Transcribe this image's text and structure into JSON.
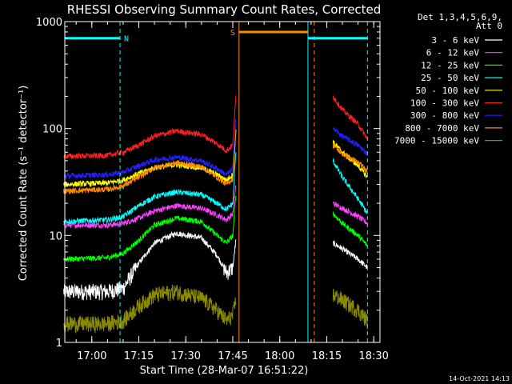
{
  "chart_data": {
    "type": "line",
    "title": "RHESSI Observing Summary Count Rates, Corrected",
    "ylabel": "Corrected Count Rate (s⁻¹ detector⁻¹)",
    "xlabel": "Start Time (28-Mar-07 16:51:22)",
    "y_scale": "log",
    "ylim": [
      1,
      1000
    ],
    "y_ticks": [
      {
        "value": 1,
        "label": "1"
      },
      {
        "value": 10,
        "label": "10"
      },
      {
        "value": 100,
        "label": "100"
      },
      {
        "value": 1000,
        "label": "1000"
      }
    ],
    "xlim": [
      "16:51:22",
      "18:32"
    ],
    "x_ticks": [
      "17:00",
      "17:15",
      "17:30",
      "17:45",
      "18:00",
      "18:15",
      "18:30"
    ],
    "grid": false,
    "legend_position": "right",
    "legend_header": [
      "Det 1,3,4,5,6,9,",
      "Att 0"
    ],
    "series": [
      {
        "name": "3 - 6 keV",
        "color": "#ffffff",
        "points": [
          [
            "16:51",
            3.0
          ],
          [
            "17:05",
            3.0
          ],
          [
            "17:10",
            3.2
          ],
          [
            "17:15",
            5.5
          ],
          [
            "17:20",
            8.5
          ],
          [
            "17:27",
            10.5
          ],
          [
            "17:35",
            9.5
          ],
          [
            "17:40",
            6.5
          ],
          [
            "17:43",
            4.5
          ],
          [
            "17:45",
            5.0
          ],
          [
            "17:46",
            9.0
          ]
        ],
        "points_late": [
          [
            "18:17",
            8.5
          ],
          [
            "18:20",
            7.5
          ],
          [
            "18:25",
            6.0
          ],
          [
            "18:28",
            5.0
          ]
        ]
      },
      {
        "name": "6 - 12 keV",
        "color": "#ff40ff",
        "points": [
          [
            "16:51",
            12.5
          ],
          [
            "17:05",
            12.5
          ],
          [
            "17:10",
            13.0
          ],
          [
            "17:15",
            14.5
          ],
          [
            "17:20",
            17.0
          ],
          [
            "17:27",
            19.0
          ],
          [
            "17:35",
            18.0
          ],
          [
            "17:40",
            15.5
          ],
          [
            "17:43",
            14.0
          ],
          [
            "17:45",
            16.0
          ],
          [
            "17:46",
            30.0
          ]
        ],
        "points_late": [
          [
            "18:17",
            20.0
          ],
          [
            "18:20",
            18.0
          ],
          [
            "18:25",
            15.0
          ],
          [
            "18:28",
            13.0
          ]
        ]
      },
      {
        "name": "12 - 25 keV",
        "color": "#00ff00",
        "points": [
          [
            "16:51",
            6.0
          ],
          [
            "17:05",
            6.2
          ],
          [
            "17:10",
            6.8
          ],
          [
            "17:15",
            9.0
          ],
          [
            "17:20",
            12.5
          ],
          [
            "17:27",
            14.5
          ],
          [
            "17:35",
            13.5
          ],
          [
            "17:40",
            10.0
          ],
          [
            "17:43",
            8.5
          ],
          [
            "17:45",
            10.0
          ],
          [
            "17:46",
            25.0
          ]
        ],
        "points_late": [
          [
            "18:17",
            16.0
          ],
          [
            "18:20",
            13.0
          ],
          [
            "18:25",
            10.0
          ],
          [
            "18:28",
            8.0
          ]
        ]
      },
      {
        "name": "25 - 50 keV",
        "color": "#00ffff",
        "points": [
          [
            "16:51",
            13.5
          ],
          [
            "17:05",
            14.0
          ],
          [
            "17:10",
            15.0
          ],
          [
            "17:15",
            19.0
          ],
          [
            "17:20",
            23.0
          ],
          [
            "17:27",
            25.5
          ],
          [
            "17:35",
            24.0
          ],
          [
            "17:40",
            20.0
          ],
          [
            "17:43",
            17.5
          ],
          [
            "17:45",
            20.0
          ],
          [
            "17:46",
            60.0
          ]
        ],
        "points_late": [
          [
            "18:17",
            50.0
          ],
          [
            "18:20",
            35.0
          ],
          [
            "18:25",
            22.0
          ],
          [
            "18:28",
            16.0
          ]
        ]
      },
      {
        "name": "50 - 100 keV",
        "color": "#ffff00",
        "points": [
          [
            "16:51",
            30.0
          ],
          [
            "17:05",
            31.0
          ],
          [
            "17:10",
            33.0
          ],
          [
            "17:15",
            38.0
          ],
          [
            "17:20",
            43.0
          ],
          [
            "17:27",
            46.0
          ],
          [
            "17:35",
            43.0
          ],
          [
            "17:40",
            37.0
          ],
          [
            "17:43",
            33.0
          ],
          [
            "17:45",
            37.0
          ],
          [
            "17:46",
            100.0
          ]
        ],
        "points_late": [
          [
            "18:17",
            75.0
          ],
          [
            "18:20",
            60.0
          ],
          [
            "18:25",
            45.0
          ],
          [
            "18:28",
            35.0
          ]
        ]
      },
      {
        "name": "100 - 300 keV",
        "color": "#ff2020",
        "points": [
          [
            "16:51",
            55.0
          ],
          [
            "17:05",
            56.0
          ],
          [
            "17:10",
            60.0
          ],
          [
            "17:15",
            70.0
          ],
          [
            "17:20",
            85.0
          ],
          [
            "17:27",
            95.0
          ],
          [
            "17:35",
            88.0
          ],
          [
            "17:40",
            72.0
          ],
          [
            "17:43",
            62.0
          ],
          [
            "17:45",
            70.0
          ],
          [
            "17:46",
            200.0
          ]
        ],
        "points_late": [
          [
            "18:17",
            200.0
          ],
          [
            "18:20",
            150.0
          ],
          [
            "18:25",
            110.0
          ],
          [
            "18:28",
            80.0
          ]
        ]
      },
      {
        "name": "300 - 800 keV",
        "color": "#2020ff",
        "points": [
          [
            "16:51",
            36.0
          ],
          [
            "17:05",
            37.0
          ],
          [
            "17:10",
            39.0
          ],
          [
            "17:15",
            45.0
          ],
          [
            "17:20",
            51.0
          ],
          [
            "17:27",
            54.0
          ],
          [
            "17:35",
            50.0
          ],
          [
            "17:40",
            42.0
          ],
          [
            "17:43",
            37.0
          ],
          [
            "17:45",
            42.0
          ],
          [
            "17:46",
            130.0
          ]
        ],
        "points_late": [
          [
            "18:17",
            100.0
          ],
          [
            "18:20",
            85.0
          ],
          [
            "18:25",
            70.0
          ],
          [
            "18:28",
            58.0
          ]
        ]
      },
      {
        "name": "800 - 7000 keV",
        "color": "#ff8c00",
        "points": [
          [
            "16:51",
            26.0
          ],
          [
            "17:05",
            27.0
          ],
          [
            "17:10",
            29.0
          ],
          [
            "17:15",
            35.0
          ],
          [
            "17:20",
            43.0
          ],
          [
            "17:27",
            48.0
          ],
          [
            "17:35",
            44.0
          ],
          [
            "17:40",
            35.0
          ],
          [
            "17:43",
            30.0
          ],
          [
            "17:45",
            34.0
          ],
          [
            "17:46",
            90.0
          ]
        ],
        "points_late": [
          [
            "18:17",
            70.0
          ],
          [
            "18:20",
            58.0
          ],
          [
            "18:25",
            48.0
          ],
          [
            "18:28",
            40.0
          ]
        ]
      },
      {
        "name": "7000 - 15000 keV",
        "color": "#8b8b00",
        "points": [
          [
            "16:51",
            1.5
          ],
          [
            "17:05",
            1.5
          ],
          [
            "17:10",
            1.6
          ],
          [
            "17:15",
            2.2
          ],
          [
            "17:20",
            2.8
          ],
          [
            "17:27",
            3.0
          ],
          [
            "17:35",
            2.6
          ],
          [
            "17:40",
            2.0
          ],
          [
            "17:43",
            1.6
          ],
          [
            "17:45",
            1.8
          ],
          [
            "17:46",
            2.5
          ]
        ],
        "points_late": [
          [
            "18:17",
            2.8
          ],
          [
            "18:20",
            2.5
          ],
          [
            "18:25",
            2.0
          ],
          [
            "18:28",
            1.6
          ]
        ]
      }
    ],
    "annotations": [
      {
        "label": "N",
        "color": "#00ffff",
        "start": "16:51:22",
        "end": "17:09",
        "level": 700
      },
      {
        "label": "",
        "color": "#00ffff",
        "start": "18:09",
        "end": "18:28",
        "level": 700
      },
      {
        "label": "S",
        "color": "#ff8c00",
        "start": "17:47",
        "end": "18:09",
        "level": 800
      }
    ],
    "vertical_lines": [
      {
        "time": "17:09",
        "color": "#00ffff",
        "style": "dashed"
      },
      {
        "time": "17:47",
        "color": "#ff8c00",
        "style": "solid"
      },
      {
        "time": "18:09",
        "color": "#00ffff",
        "style": "solid"
      },
      {
        "time": "18:11",
        "color": "#ff8c00",
        "style": "dashed"
      },
      {
        "time": "18:28",
        "color": "#00ffff",
        "style": "dashed"
      }
    ],
    "footer_date": "14-Oct-2021 14:13"
  }
}
